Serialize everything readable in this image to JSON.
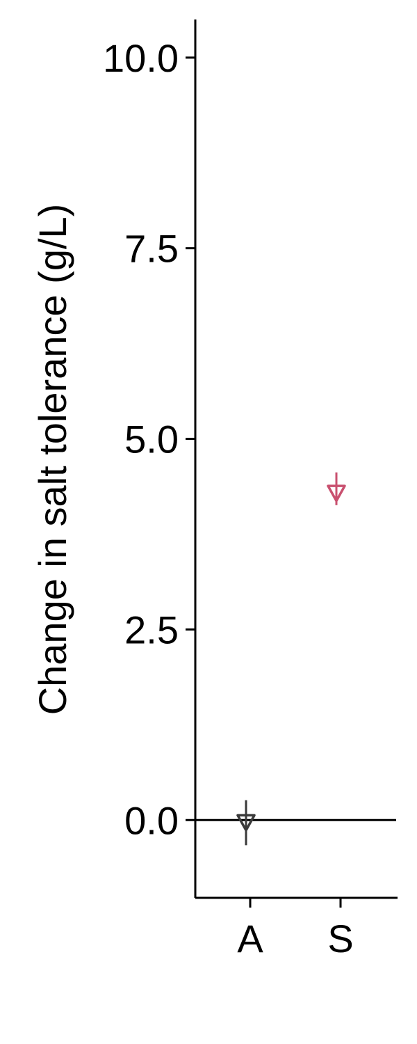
{
  "chart_data": {
    "type": "scatter",
    "title": "",
    "xlabel": "",
    "ylabel": "Change in salt tolerance (g/L)",
    "categories": [
      "A",
      "S"
    ],
    "ylim": [
      -1.02,
      10.5
    ],
    "yticks": [
      0.0,
      2.5,
      5.0,
      7.5,
      10.0
    ],
    "ytick_labels": [
      "0.0",
      "2.5",
      "5.0",
      "7.5",
      "10.0"
    ],
    "reference_line_y": 0,
    "grid": false,
    "marker": "triangle-down-open",
    "points": [
      {
        "category": "A",
        "y": -0.03,
        "err_low": -0.33,
        "err_high": 0.26,
        "color": "#3a3a3a"
      },
      {
        "category": "S",
        "y": 4.29,
        "err_low": 4.13,
        "err_high": 4.56,
        "color": "#c9506f"
      }
    ]
  }
}
